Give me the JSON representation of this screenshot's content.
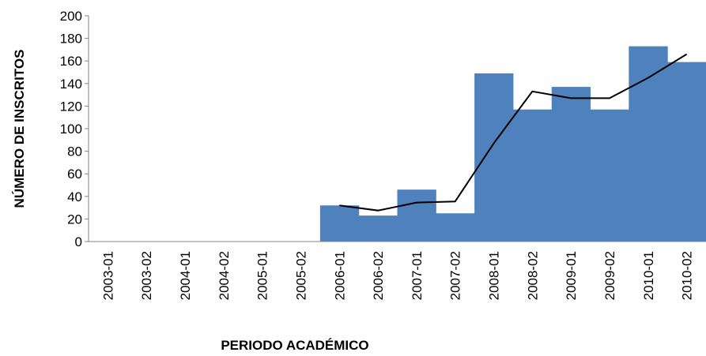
{
  "chart_data": {
    "type": "bar",
    "xlabel": "PERIODO ACADÉMICO",
    "ylabel": "NÚMERO DE INSCRITOS",
    "categories": [
      "2003-01",
      "2003-02",
      "2004-01",
      "2004-02",
      "2005-01",
      "2005-02",
      "2006-01",
      "2006-02",
      "2007-01",
      "2007-02",
      "2008-01",
      "2008-02",
      "2009-01",
      "2009-02",
      "2010-01",
      "2010-02"
    ],
    "series": [
      {
        "type": "bar",
        "color": "#4f81bd",
        "values": [
          0,
          0,
          0,
          0,
          0,
          0,
          32,
          23,
          46,
          25,
          149,
          117,
          137,
          117,
          173,
          159
        ]
      },
      {
        "type": "line",
        "color": "#000000",
        "values": [
          null,
          null,
          null,
          null,
          null,
          null,
          32,
          27.5,
          34.5,
          35.5,
          87,
          133,
          127,
          127,
          145,
          166
        ]
      }
    ],
    "ylim": [
      0,
      200
    ],
    "yticks": [
      0,
      20,
      40,
      60,
      80,
      100,
      120,
      140,
      160,
      180,
      200
    ],
    "grid": false
  }
}
